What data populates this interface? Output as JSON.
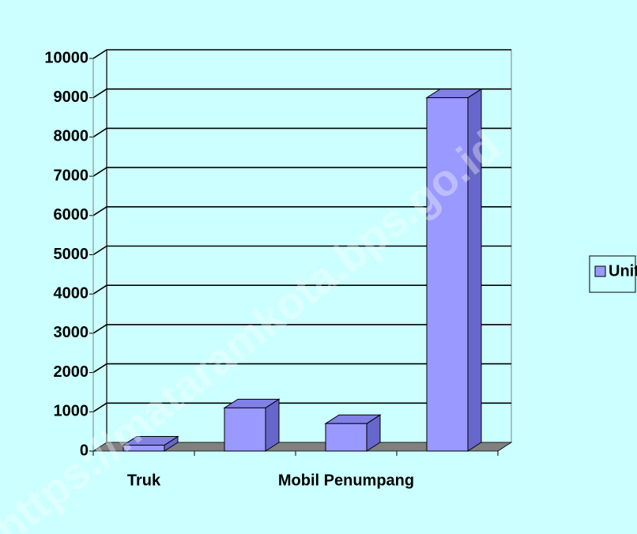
{
  "chart_data": {
    "type": "bar3d",
    "categories": [
      "Truk",
      null,
      "Mobil Penumpang",
      null
    ],
    "series": [
      {
        "name": "Unit",
        "color": "#9999ff",
        "values": [
          150,
          1100,
          700,
          9000
        ]
      }
    ],
    "ylim": [
      0,
      10000
    ],
    "yticks": [
      0,
      1000,
      2000,
      3000,
      4000,
      5000,
      6000,
      7000,
      8000,
      9000,
      10000
    ],
    "grid": true,
    "legend": "right",
    "watermark": "https://mataramkota.bps.go.id"
  }
}
